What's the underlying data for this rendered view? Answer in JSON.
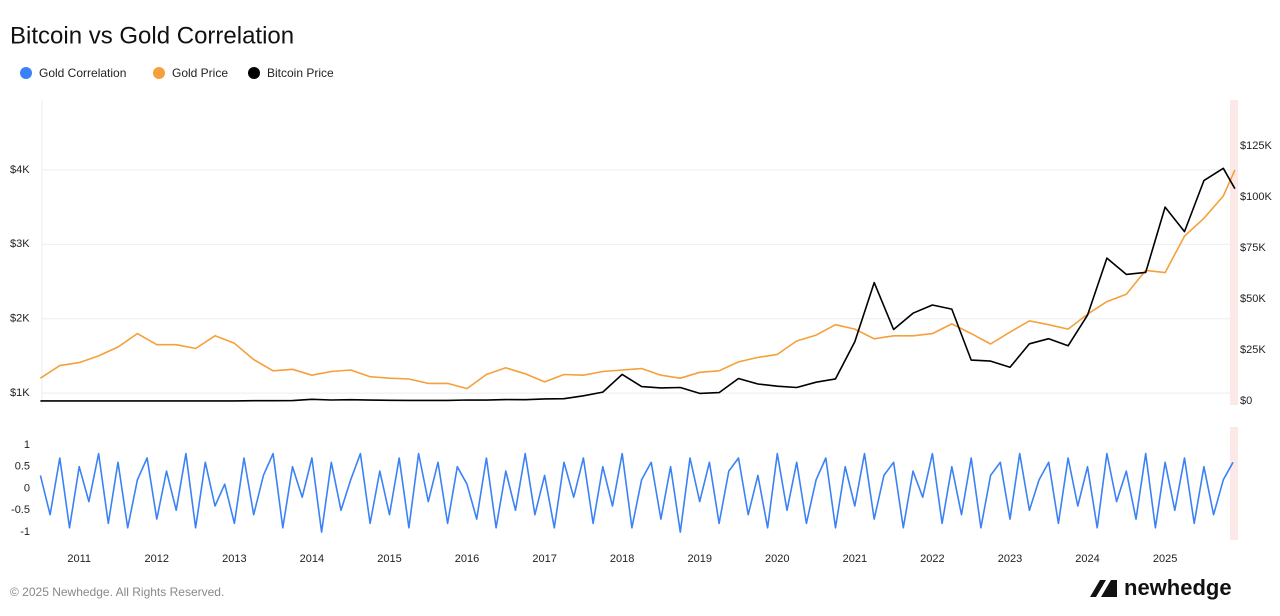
{
  "chart_data": [
    {
      "type": "line",
      "title": "Bitcoin vs Gold Correlation",
      "x": [
        2010.5,
        2010.75,
        2011,
        2011.25,
        2011.5,
        2011.75,
        2012,
        2012.25,
        2012.5,
        2012.75,
        2013,
        2013.25,
        2013.5,
        2013.75,
        2014,
        2014.25,
        2014.5,
        2014.75,
        2015,
        2015.25,
        2015.5,
        2015.75,
        2016,
        2016.25,
        2016.5,
        2016.75,
        2017,
        2017.25,
        2017.5,
        2017.75,
        2018,
        2018.25,
        2018.5,
        2018.75,
        2019,
        2019.25,
        2019.5,
        2019.75,
        2020,
        2020.25,
        2020.5,
        2020.75,
        2021,
        2021.25,
        2021.5,
        2021.75,
        2022,
        2022.25,
        2022.5,
        2022.75,
        2023,
        2023.25,
        2023.5,
        2023.75,
        2024,
        2024.25,
        2024.5,
        2024.75,
        2025,
        2025.25,
        2025.5,
        2025.75,
        2025.9
      ],
      "series": [
        {
          "name": "Gold Price",
          "color": "#f5a03a",
          "values": [
            1200,
            1370,
            1410,
            1500,
            1620,
            1800,
            1650,
            1650,
            1600,
            1770,
            1670,
            1450,
            1300,
            1320,
            1240,
            1290,
            1310,
            1220,
            1200,
            1190,
            1130,
            1130,
            1060,
            1250,
            1340,
            1260,
            1150,
            1250,
            1240,
            1290,
            1310,
            1330,
            1240,
            1200,
            1280,
            1300,
            1420,
            1480,
            1520,
            1700,
            1780,
            1920,
            1860,
            1730,
            1770,
            1770,
            1800,
            1930,
            1800,
            1660,
            1820,
            1970,
            1920,
            1860,
            2060,
            2230,
            2330,
            2650,
            2620,
            3110,
            3350,
            3650,
            4000
          ]
        },
        {
          "name": "Bitcoin Price",
          "color": "#000000",
          "axis": "y2",
          "values": [
            0.07,
            0.1,
            0.3,
            1,
            14,
            5,
            5,
            5,
            7,
            12,
            13,
            100,
            100,
            140,
            800,
            450,
            600,
            380,
            320,
            245,
            260,
            240,
            430,
            420,
            650,
            610,
            970,
            1100,
            2500,
            4300,
            13000,
            7000,
            6400,
            6600,
            3700,
            4100,
            11000,
            8300,
            7200,
            6600,
            9200,
            10800,
            29000,
            58000,
            35000,
            43000,
            47000,
            45000,
            20000,
            19500,
            16500,
            28000,
            30500,
            27000,
            42000,
            70000,
            62000,
            63000,
            95000,
            83000,
            108000,
            114000,
            104000
          ]
        }
      ],
      "xlim": [
        2010.52,
        2025.94
      ],
      "ylim": [
        840,
        4940
      ],
      "yticks": [
        {
          "value": 1000,
          "label": "$1K"
        },
        {
          "value": 2000,
          "label": "$2K"
        },
        {
          "value": 3000,
          "label": "$3K"
        },
        {
          "value": 4000,
          "label": "$4K"
        }
      ],
      "y2lim": [
        -2000,
        147500
      ],
      "y2ticks": [
        {
          "value": 0,
          "label": "$0"
        },
        {
          "value": 25000,
          "label": "$25K"
        },
        {
          "value": 50000,
          "label": "$50K"
        },
        {
          "value": 75000,
          "label": "$75K"
        },
        {
          "value": 100000,
          "label": "$100K"
        },
        {
          "value": 125000,
          "label": "$125K"
        }
      ],
      "grid": true
    },
    {
      "type": "line",
      "x": [
        2010.5,
        2010.625,
        2010.75,
        2010.875,
        2011,
        2011.125,
        2011.25,
        2011.375,
        2011.5,
        2011.625,
        2011.75,
        2011.875,
        2012,
        2012.125,
        2012.25,
        2012.375,
        2012.5,
        2012.625,
        2012.75,
        2012.875,
        2013,
        2013.125,
        2013.25,
        2013.375,
        2013.5,
        2013.625,
        2013.75,
        2013.875,
        2014,
        2014.125,
        2014.25,
        2014.375,
        2014.5,
        2014.625,
        2014.75,
        2014.875,
        2015,
        2015.125,
        2015.25,
        2015.375,
        2015.5,
        2015.625,
        2015.75,
        2015.875,
        2016,
        2016.125,
        2016.25,
        2016.375,
        2016.5,
        2016.625,
        2016.75,
        2016.875,
        2017,
        2017.125,
        2017.25,
        2017.375,
        2017.5,
        2017.625,
        2017.75,
        2017.875,
        2018,
        2018.125,
        2018.25,
        2018.375,
        2018.5,
        2018.625,
        2018.75,
        2018.875,
        2019,
        2019.125,
        2019.25,
        2019.375,
        2019.5,
        2019.625,
        2019.75,
        2019.875,
        2020,
        2020.125,
        2020.25,
        2020.375,
        2020.5,
        2020.625,
        2020.75,
        2020.875,
        2021,
        2021.125,
        2021.25,
        2021.375,
        2021.5,
        2021.625,
        2021.75,
        2021.875,
        2022,
        2022.125,
        2022.25,
        2022.375,
        2022.5,
        2022.625,
        2022.75,
        2022.875,
        2023,
        2023.125,
        2023.25,
        2023.375,
        2023.5,
        2023.625,
        2023.75,
        2023.875,
        2024,
        2024.125,
        2024.25,
        2024.375,
        2024.5,
        2024.625,
        2024.75,
        2024.875,
        2025,
        2025.125,
        2025.25,
        2025.375,
        2025.5,
        2025.625,
        2025.75,
        2025.875
      ],
      "series": [
        {
          "name": "Gold Correlation",
          "color": "#3b82f6",
          "values": [
            0.3,
            -0.6,
            0.7,
            -0.9,
            0.5,
            -0.3,
            0.8,
            -0.8,
            0.6,
            -0.9,
            0.2,
            0.7,
            -0.7,
            0.4,
            -0.5,
            0.8,
            -0.9,
            0.6,
            -0.4,
            0.1,
            -0.8,
            0.7,
            -0.6,
            0.3,
            0.8,
            -0.9,
            0.5,
            -0.2,
            0.7,
            -1,
            0.6,
            -0.5,
            0.2,
            0.8,
            -0.8,
            0.4,
            -0.6,
            0.7,
            -0.9,
            0.8,
            -0.3,
            0.6,
            -0.8,
            0.5,
            0.1,
            -0.7,
            0.7,
            -0.9,
            0.4,
            -0.5,
            0.8,
            -0.6,
            0.3,
            -0.9,
            0.6,
            -0.2,
            0.7,
            -0.8,
            0.5,
            -0.4,
            0.8,
            -0.9,
            0.2,
            0.6,
            -0.7,
            0.5,
            -1,
            0.7,
            -0.3,
            0.6,
            -0.8,
            0.4,
            0.7,
            -0.6,
            0.3,
            -0.9,
            0.8,
            -0.5,
            0.6,
            -0.8,
            0.2,
            0.7,
            -0.9,
            0.5,
            -0.4,
            0.8,
            -0.7,
            0.3,
            0.6,
            -0.9,
            0.4,
            -0.2,
            0.8,
            -0.8,
            0.5,
            -0.6,
            0.7,
            -0.9,
            0.3,
            0.6,
            -0.7,
            0.8,
            -0.5,
            0.2,
            0.6,
            -0.8,
            0.7,
            -0.4,
            0.5,
            -0.9,
            0.8,
            -0.3,
            0.4,
            -0.7,
            0.8,
            -0.9,
            0.6,
            -0.5,
            0.7,
            -0.8,
            0.5,
            -0.6,
            0.2,
            0.6
          ]
        }
      ],
      "xlim": [
        2010.52,
        2025.94
      ],
      "xticks": [
        2011,
        2012,
        2013,
        2014,
        2015,
        2016,
        2017,
        2018,
        2019,
        2020,
        2021,
        2022,
        2023,
        2024,
        2025
      ],
      "ylim": [
        -1.18,
        1.41
      ],
      "yticks": [
        -1,
        -0.5,
        0,
        0.5,
        1
      ],
      "grid": false
    }
  ],
  "footer": {
    "copyright": "© 2025 Newhedge. All Rights Reserved.",
    "brand": "newhedge"
  }
}
